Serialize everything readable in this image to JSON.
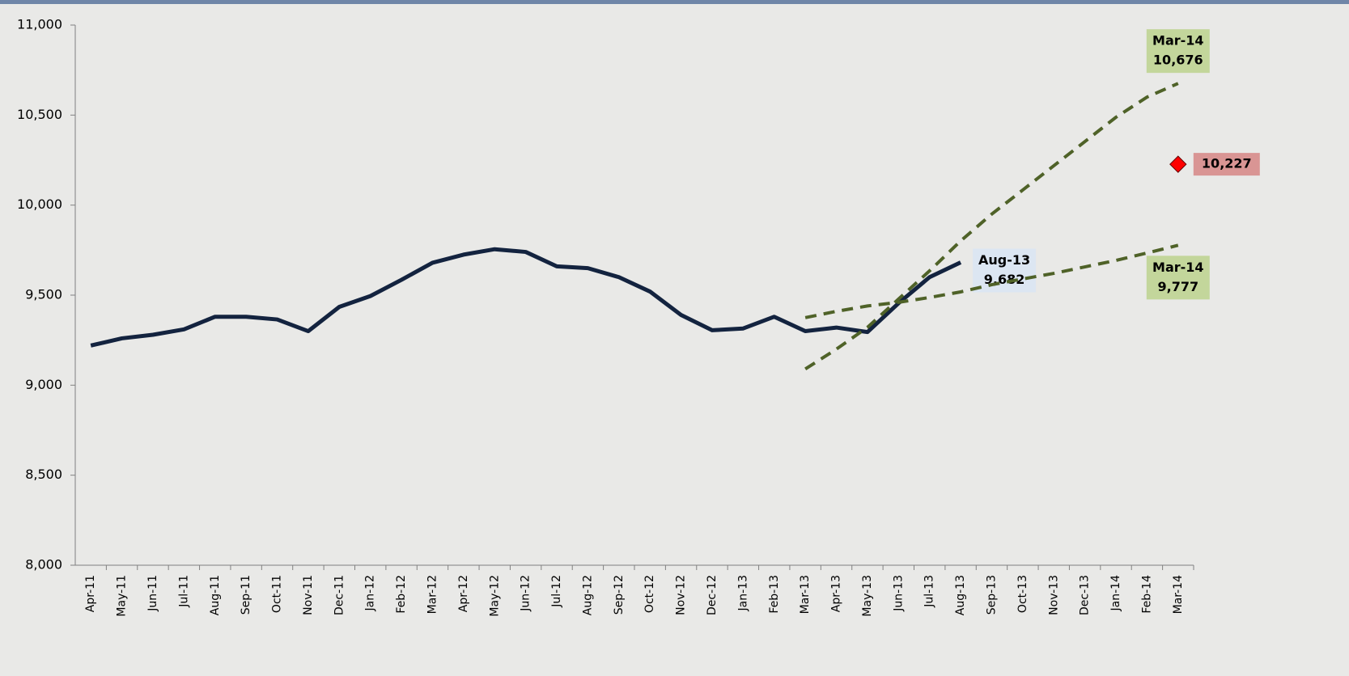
{
  "chart_data": {
    "type": "line",
    "categories": [
      "Apr-11",
      "May-11",
      "Jun-11",
      "Jul-11",
      "Aug-11",
      "Sep-11",
      "Oct-11",
      "Nov-11",
      "Dec-11",
      "Jan-12",
      "Feb-12",
      "Mar-12",
      "Apr-12",
      "May-12",
      "Jun-12",
      "Jul-12",
      "Aug-12",
      "Sep-12",
      "Oct-12",
      "Nov-12",
      "Dec-12",
      "Jan-13",
      "Feb-13",
      "Mar-13",
      "Apr-13",
      "May-13",
      "Jun-13",
      "Jul-13",
      "Aug-13",
      "Sep-13",
      "Oct-13",
      "Nov-13",
      "Dec-13",
      "Jan-14",
      "Feb-14",
      "Mar-14"
    ],
    "series": [
      {
        "color": "#13233f",
        "style": "solid",
        "values": [
          9220,
          9260,
          9280,
          9310,
          9380,
          9380,
          9365,
          9300,
          9435,
          9495,
          9585,
          9680,
          9725,
          9755,
          9740,
          9660,
          9650,
          9600,
          9520,
          9390,
          9305,
          9315,
          9380,
          9300,
          9320,
          9295,
          9455,
          9600,
          9682,
          null,
          null,
          null,
          null,
          null,
          null,
          null
        ],
        "value_labels": [
          null,
          null,
          null,
          null,
          null,
          null,
          null,
          null,
          null,
          null,
          null,
          null,
          null,
          null,
          null,
          null,
          null,
          null,
          null,
          null,
          null,
          null,
          null,
          null,
          null,
          null,
          null,
          null,
          "9,682",
          null,
          null,
          null,
          null,
          null,
          null,
          null
        ]
      },
      {
        "color": "#4f6228",
        "style": "dashed",
        "values": [
          null,
          null,
          null,
          null,
          null,
          null,
          null,
          null,
          null,
          null,
          null,
          null,
          null,
          null,
          null,
          null,
          null,
          null,
          null,
          null,
          null,
          null,
          null,
          9090,
          9200,
          9321,
          9478,
          9635,
          9801,
          9950,
          10084,
          10219,
          10353,
          10488,
          10600,
          10676
        ],
        "value_labels": [
          null,
          null,
          null,
          null,
          null,
          null,
          null,
          null,
          null,
          null,
          null,
          null,
          null,
          null,
          null,
          null,
          null,
          null,
          null,
          null,
          null,
          null,
          null,
          null,
          null,
          null,
          null,
          null,
          null,
          null,
          null,
          null,
          null,
          null,
          null,
          "10,676"
        ]
      },
      {
        "color": "#4f6228",
        "style": "dashed",
        "values": [
          null,
          null,
          null,
          null,
          null,
          null,
          null,
          null,
          null,
          null,
          null,
          null,
          null,
          null,
          null,
          null,
          null,
          null,
          null,
          null,
          null,
          null,
          null,
          9375,
          9410,
          9440,
          9460,
          9487,
          9518,
          9558,
          9590,
          9621,
          9657,
          9693,
          9734,
          9777
        ],
        "value_labels": [
          null,
          null,
          null,
          null,
          null,
          null,
          null,
          null,
          null,
          null,
          null,
          null,
          null,
          null,
          null,
          null,
          null,
          null,
          null,
          null,
          null,
          null,
          null,
          null,
          null,
          null,
          null,
          null,
          null,
          null,
          null,
          null,
          null,
          null,
          null,
          "9,777"
        ]
      },
      {
        "color": "#ff0000",
        "style": "marker",
        "values": [
          null,
          null,
          null,
          null,
          null,
          null,
          null,
          null,
          null,
          null,
          null,
          null,
          null,
          null,
          null,
          null,
          null,
          null,
          null,
          null,
          null,
          null,
          null,
          null,
          null,
          null,
          null,
          null,
          null,
          null,
          null,
          null,
          null,
          null,
          null,
          10227
        ],
        "value_labels": [
          null,
          null,
          null,
          null,
          null,
          null,
          null,
          null,
          null,
          null,
          null,
          null,
          null,
          null,
          null,
          null,
          null,
          null,
          null,
          null,
          null,
          null,
          null,
          null,
          null,
          null,
          null,
          null,
          null,
          null,
          null,
          null,
          null,
          null,
          null,
          "10,227"
        ]
      }
    ],
    "ylim": [
      8000,
      11000
    ],
    "yticks": [
      {
        "value": 8000,
        "label": "8,000"
      },
      {
        "value": 8500,
        "label": "8,500"
      },
      {
        "value": 9000,
        "label": "9,000"
      },
      {
        "value": 9500,
        "label": "9,500"
      },
      {
        "value": 10000,
        "label": "10,000"
      },
      {
        "value": 10500,
        "label": "10,500"
      },
      {
        "value": 11000,
        "label": "11,000"
      }
    ],
    "grid": false
  }
}
